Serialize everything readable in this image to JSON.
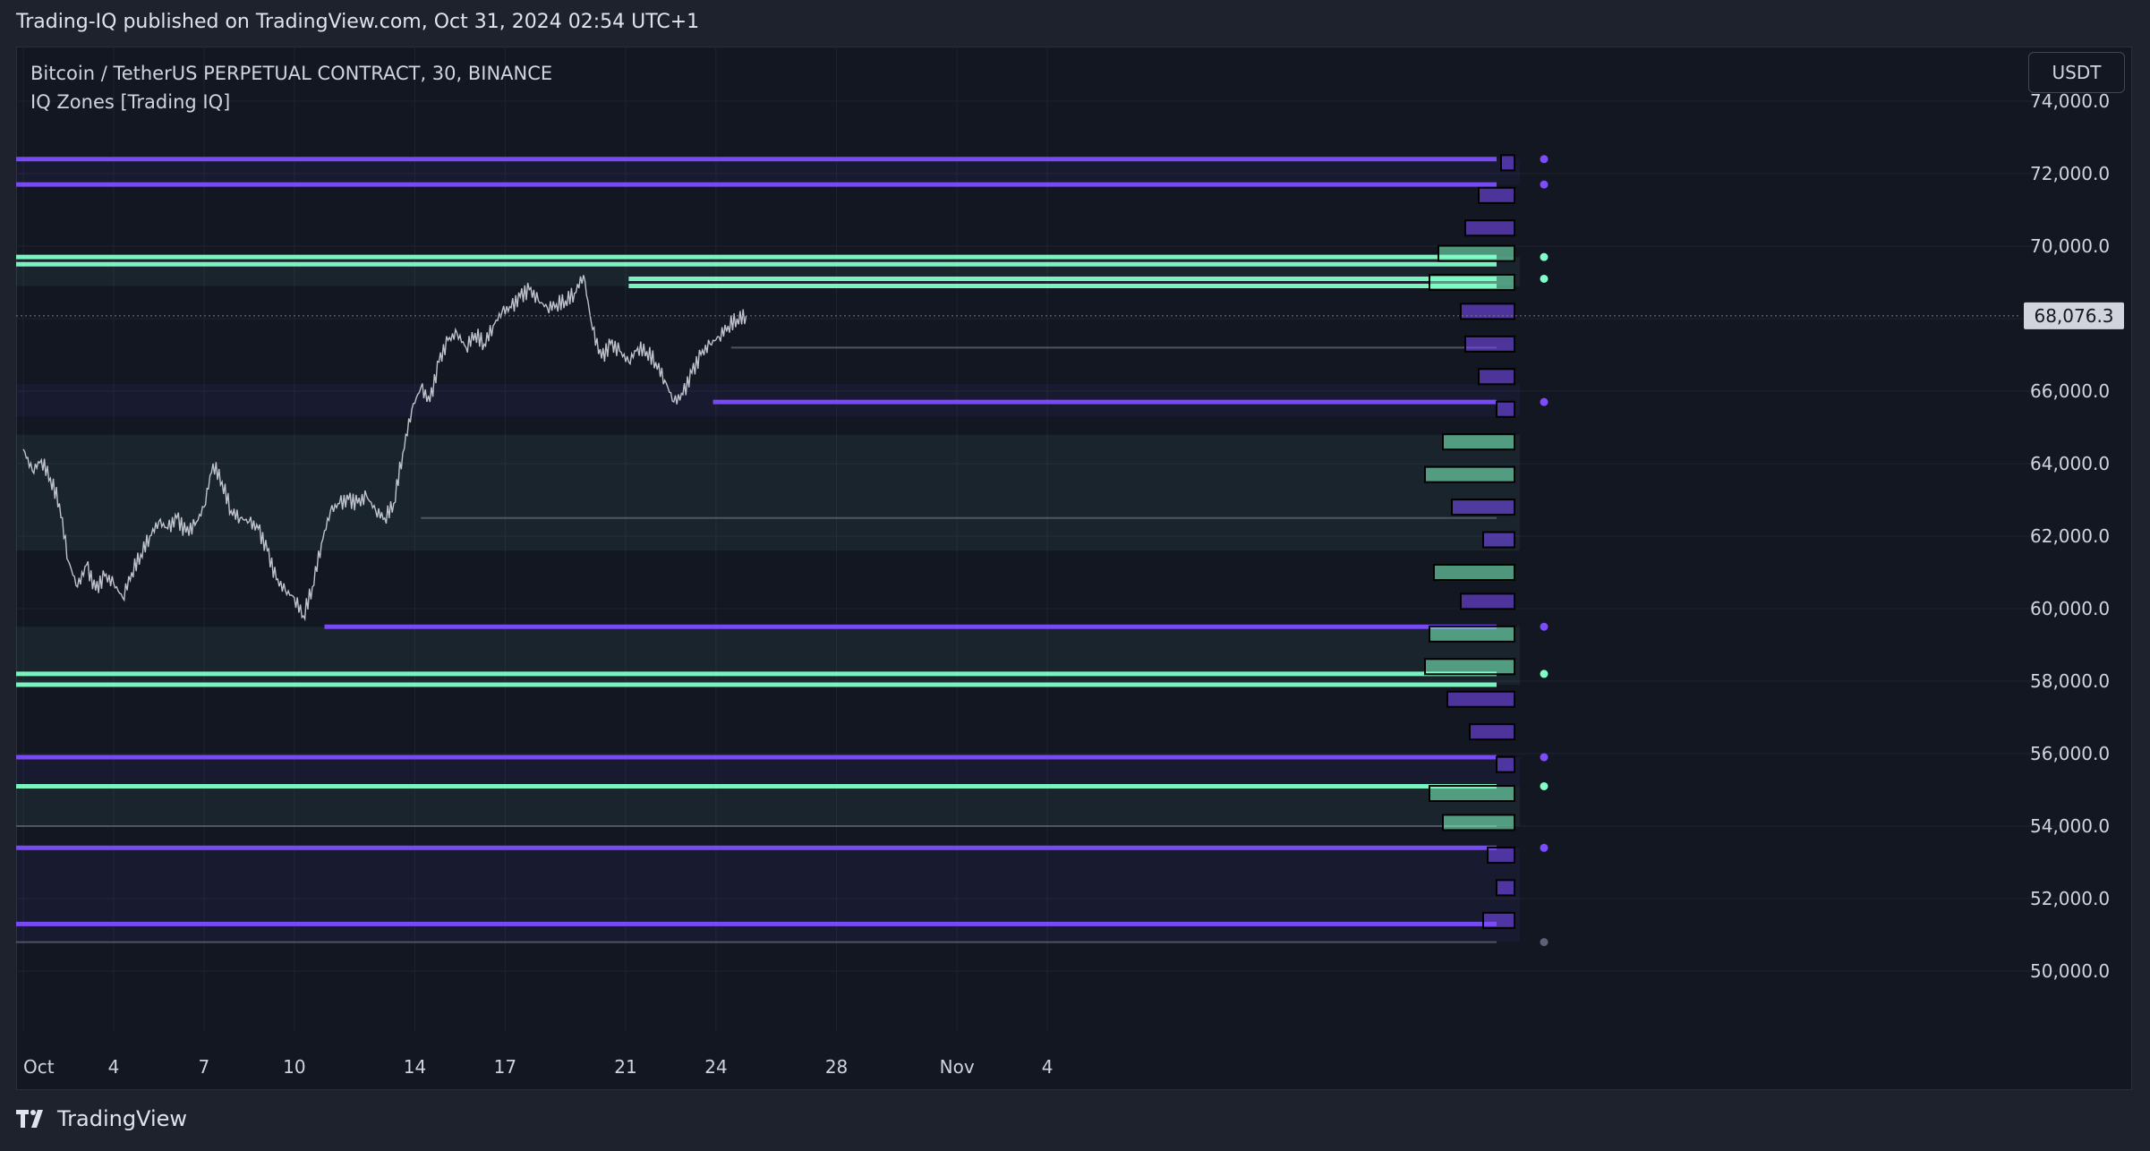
{
  "header": {
    "published": "Trading-IQ published on TradingView.com, Oct 31, 2024 02:54 UTC+1"
  },
  "legend": {
    "symbol": "Bitcoin / TetherUS PERPETUAL CONTRACT, 30, BINANCE",
    "indicator": "IQ Zones [Trading IQ]"
  },
  "currency": "USDT",
  "footer": {
    "brand": "TradingView"
  },
  "colors": {
    "background": "#131722",
    "price_line": "#d1d4dc",
    "purple_zone": "#7c4dff",
    "green_zone": "#81ffc8",
    "current_price_label_bg": "#d1d4dc",
    "grid": "#1f2330"
  },
  "chart_data": {
    "type": "line",
    "title": "Bitcoin / TetherUS PERPETUAL CONTRACT, 30, BINANCE",
    "ylim": [
      48500,
      74700
    ],
    "y_ticks": [
      50000,
      52000,
      54000,
      56000,
      58000,
      60000,
      62000,
      64000,
      66000,
      68000,
      70000,
      72000,
      74000
    ],
    "y_tick_labels": [
      "50,000.0",
      "52,000.0",
      "54,000.0",
      "56,000.0",
      "58,000.0",
      "60,000.0",
      "62,000.0",
      "64,000.0",
      "66,000.0",
      "68,000.0",
      "70,000.0",
      "72,000.0",
      "74,000.0"
    ],
    "x_ticks": [
      {
        "day": 1,
        "label": "Oct"
      },
      {
        "day": 4,
        "label": "4"
      },
      {
        "day": 7,
        "label": "7"
      },
      {
        "day": 10,
        "label": "10"
      },
      {
        "day": 14,
        "label": "14"
      },
      {
        "day": 17,
        "label": "17"
      },
      {
        "day": 21,
        "label": "21"
      },
      {
        "day": 24,
        "label": "24"
      },
      {
        "day": 28,
        "label": "28"
      },
      {
        "day": 32,
        "label": "Nov"
      },
      {
        "day": 35,
        "label": "4"
      }
    ],
    "current_price": 68076.3,
    "current_price_label": "68,076.3",
    "series": [
      {
        "name": "BTCUSDT.P",
        "x": [
          1.0,
          1.3,
          1.6,
          1.9,
          2.2,
          2.5,
          2.8,
          3.1,
          3.4,
          3.7,
          4.0,
          4.3,
          4.6,
          4.9,
          5.2,
          5.5,
          5.8,
          6.1,
          6.4,
          6.7,
          7.0,
          7.3,
          7.6,
          7.9,
          8.2,
          8.5,
          8.8,
          9.1,
          9.4,
          9.7,
          10.0,
          10.3,
          10.6,
          10.9,
          11.2,
          11.5,
          11.8,
          12.1,
          12.4,
          12.7,
          13.0,
          13.3,
          13.6,
          13.9,
          14.2,
          14.5,
          14.8,
          15.1,
          15.4,
          15.7,
          16.0,
          16.3,
          16.6,
          16.9,
          17.2,
          17.5,
          17.8,
          18.1,
          18.4,
          18.7,
          19.0,
          19.3,
          19.6,
          19.9,
          20.2,
          20.5,
          20.8,
          21.1,
          21.4,
          21.7,
          22.0,
          22.3,
          22.6,
          22.9,
          23.2,
          23.5,
          23.8,
          24.1,
          24.4,
          24.7,
          25.0
        ],
        "y": [
          64400,
          63800,
          64100,
          63600,
          62900,
          61300,
          60600,
          61200,
          60500,
          60900,
          60700,
          60300,
          61000,
          61500,
          62000,
          62400,
          62200,
          62500,
          62100,
          62300,
          62800,
          64000,
          63500,
          62700,
          62500,
          62400,
          62200,
          61600,
          60800,
          60500,
          60300,
          59800,
          60600,
          61800,
          62700,
          62900,
          63000,
          62900,
          63100,
          62700,
          62500,
          62900,
          64300,
          65500,
          66100,
          65700,
          66800,
          67400,
          67600,
          67200,
          67600,
          67300,
          67800,
          68200,
          68300,
          68600,
          68800,
          68500,
          68300,
          68400,
          68500,
          68700,
          69200,
          67700,
          66900,
          67300,
          67100,
          66800,
          67200,
          67100,
          66800,
          66300,
          65700,
          65900,
          66500,
          67000,
          67300,
          67500,
          67800,
          68000,
          68076
        ]
      }
    ],
    "zone_lines": [
      {
        "price": 72400,
        "color": "purple",
        "dot": true
      },
      {
        "price": 71700,
        "color": "purple",
        "dot": true
      },
      {
        "price": 69700,
        "color": "green",
        "dot": true
      },
      {
        "price": 69500,
        "color": "green",
        "dot": false
      },
      {
        "price": 69100,
        "color": "green",
        "dot": true,
        "from_day": 21.1
      },
      {
        "price": 68900,
        "color": "green",
        "dot": false,
        "from_day": 21.1
      },
      {
        "price": 67200,
        "color": "gray",
        "dot": false,
        "from_day": 24.5
      },
      {
        "price": 65700,
        "color": "purple",
        "dot": true,
        "from_day": 23.9
      },
      {
        "price": 62500,
        "color": "gray",
        "dot": false,
        "from_day": 14.2
      },
      {
        "price": 59500,
        "color": "purple",
        "dot": true,
        "from_day": 11.0
      },
      {
        "price": 58200,
        "color": "green",
        "dot": true
      },
      {
        "price": 57900,
        "color": "green",
        "dot": false
      },
      {
        "price": 55900,
        "color": "purple",
        "dot": true
      },
      {
        "price": 55100,
        "color": "green",
        "dot": true
      },
      {
        "price": 54000,
        "color": "gray",
        "dot": false
      },
      {
        "price": 53400,
        "color": "purple",
        "dot": true
      },
      {
        "price": 51300,
        "color": "purple",
        "dot": false
      },
      {
        "price": 50800,
        "color": "gray",
        "dot": true
      }
    ],
    "volume_profile": [
      {
        "price": 72300,
        "size": 0.15,
        "color": "purple"
      },
      {
        "price": 71400,
        "size": 0.4,
        "color": "purple"
      },
      {
        "price": 70500,
        "size": 0.55,
        "color": "purple"
      },
      {
        "price": 69800,
        "size": 0.85,
        "color": "green"
      },
      {
        "price": 69000,
        "size": 0.95,
        "color": "green"
      },
      {
        "price": 68200,
        "size": 0.6,
        "color": "purple"
      },
      {
        "price": 67300,
        "size": 0.55,
        "color": "purple"
      },
      {
        "price": 66400,
        "size": 0.4,
        "color": "purple"
      },
      {
        "price": 65500,
        "size": 0.2,
        "color": "purple"
      },
      {
        "price": 64600,
        "size": 0.8,
        "color": "green"
      },
      {
        "price": 63700,
        "size": 1.0,
        "color": "green"
      },
      {
        "price": 62800,
        "size": 0.7,
        "color": "purple"
      },
      {
        "price": 61900,
        "size": 0.35,
        "color": "purple"
      },
      {
        "price": 61000,
        "size": 0.9,
        "color": "green"
      },
      {
        "price": 60200,
        "size": 0.6,
        "color": "purple"
      },
      {
        "price": 59300,
        "size": 0.95,
        "color": "green"
      },
      {
        "price": 58400,
        "size": 1.0,
        "color": "green"
      },
      {
        "price": 57500,
        "size": 0.75,
        "color": "purple"
      },
      {
        "price": 56600,
        "size": 0.5,
        "color": "purple"
      },
      {
        "price": 55700,
        "size": 0.2,
        "color": "purple"
      },
      {
        "price": 54900,
        "size": 0.95,
        "color": "green"
      },
      {
        "price": 54100,
        "size": 0.8,
        "color": "green"
      },
      {
        "price": 53200,
        "size": 0.3,
        "color": "purple"
      },
      {
        "price": 52300,
        "size": 0.2,
        "color": "purple"
      },
      {
        "price": 51400,
        "size": 0.35,
        "color": "purple"
      }
    ]
  }
}
